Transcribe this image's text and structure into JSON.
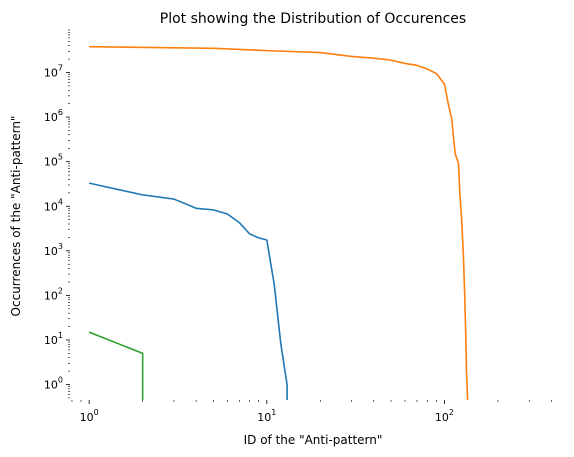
{
  "chart_data": {
    "type": "line",
    "title": "Plot showing the Distribution of Occurences",
    "xlabel": "ID of the \"Anti-pattern\"",
    "ylabel": "Occurrences of the \"Anti-pattern\"",
    "xscale": "log",
    "yscale": "log",
    "xlim": [
      0.78,
      430
    ],
    "ylim": [
      0.45,
      90000000
    ],
    "grid": false,
    "legend": "none",
    "x_ticks": [
      {
        "base": "10",
        "exp": "0",
        "value": 1
      },
      {
        "base": "10",
        "exp": "1",
        "value": 10
      },
      {
        "base": "10",
        "exp": "2",
        "value": 100
      }
    ],
    "y_ticks": [
      {
        "base": "10",
        "exp": "0",
        "value": 1
      },
      {
        "base": "10",
        "exp": "1",
        "value": 10
      },
      {
        "base": "10",
        "exp": "2",
        "value": 100
      },
      {
        "base": "10",
        "exp": "3",
        "value": 1000
      },
      {
        "base": "10",
        "exp": "4",
        "value": 10000
      },
      {
        "base": "10",
        "exp": "5",
        "value": 100000
      },
      {
        "base": "10",
        "exp": "6",
        "value": 1000000
      },
      {
        "base": "10",
        "exp": "7",
        "value": 10000000
      }
    ],
    "series": [
      {
        "color": "#1f77b4",
        "x": [
          1,
          2,
          3,
          4,
          5,
          6,
          7,
          8,
          9,
          10,
          11,
          12,
          13,
          13
        ],
        "y": [
          33000,
          18000,
          14500,
          9000,
          8300,
          6700,
          4300,
          2400,
          1950,
          1750,
          180,
          8,
          1,
          0.45
        ]
      },
      {
        "color": "#ff7f0e",
        "x": [
          1,
          5,
          10,
          20,
          30,
          40,
          50,
          60,
          70,
          80,
          90,
          100,
          105,
          110,
          112,
          115,
          120,
          122,
          125,
          128,
          130,
          132,
          133,
          134,
          135
        ],
        "y": [
          38000000,
          35000000,
          31000000,
          28000000,
          23000000,
          21000000,
          19000000,
          16000000,
          14500000,
          12000000,
          9500000,
          5500000,
          2000000,
          900000,
          400000,
          150000,
          90000,
          20000,
          5000,
          700,
          100,
          10,
          2,
          1,
          0.45
        ]
      },
      {
        "color": "#2ca02c",
        "x": [
          1,
          2,
          2
        ],
        "y": [
          15,
          5,
          0.45
        ]
      }
    ]
  }
}
